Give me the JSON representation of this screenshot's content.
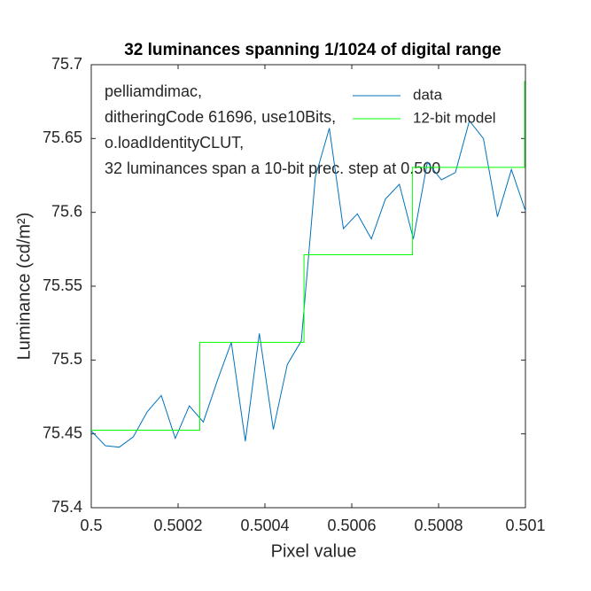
{
  "chart_data": {
    "type": "line",
    "title": "32 luminances spanning 1/1024 of digital range",
    "xlabel": "Pixel value",
    "ylabel": "Luminance (cd/m²)",
    "annotations": [
      "pelliamdimac,",
      "ditheringCode 61696, use10Bits,",
      "o.loadIdentityCLUT,",
      "32 luminances span a 10-bit prec. step at 0.500"
    ],
    "xlim": [
      0.5,
      0.501
    ],
    "xticks": [
      0.5,
      0.5002,
      0.5004,
      0.5006,
      0.5008,
      0.501
    ],
    "ylim": [
      75.4,
      75.7
    ],
    "yticks": [
      75.4,
      75.45,
      75.5,
      75.55,
      75.6,
      75.65,
      75.7
    ],
    "legend": "top-right",
    "series": [
      {
        "name": "data",
        "color": "#0072bd",
        "x": [
          0.5,
          0.50003226,
          0.50006452,
          0.50009677,
          0.50012903,
          0.50016129,
          0.50019355,
          0.50022581,
          0.50025806,
          0.50029032,
          0.50032258,
          0.50035484,
          0.5003871,
          0.50041935,
          0.50045161,
          0.50048387,
          0.50051613,
          0.50054839,
          0.50058065,
          0.5006129,
          0.50064516,
          0.50067742,
          0.50070968,
          0.50074194,
          0.50077419,
          0.50080645,
          0.50083871,
          0.50087097,
          0.50090323,
          0.50093548,
          0.50096774,
          0.501
        ],
        "values": [
          75.452,
          75.442,
          75.441,
          75.448,
          75.465,
          75.476,
          75.447,
          75.469,
          75.458,
          75.486,
          75.512,
          75.445,
          75.518,
          75.453,
          75.497,
          75.513,
          75.624,
          75.657,
          75.589,
          75.599,
          75.582,
          75.609,
          75.619,
          75.582,
          75.634,
          75.622,
          75.627,
          75.662,
          75.65,
          75.597,
          75.629,
          75.601
        ]
      },
      {
        "name": "12-bit model",
        "color": "#00ff00",
        "x": [
          0.5,
          0.50025,
          0.50025,
          0.50049,
          0.50049,
          0.50074,
          0.50074,
          0.500998,
          0.500998
        ],
        "values": [
          75.4525,
          75.4525,
          75.512,
          75.512,
          75.5713,
          75.5713,
          75.6305,
          75.6305,
          75.689
        ]
      }
    ]
  }
}
